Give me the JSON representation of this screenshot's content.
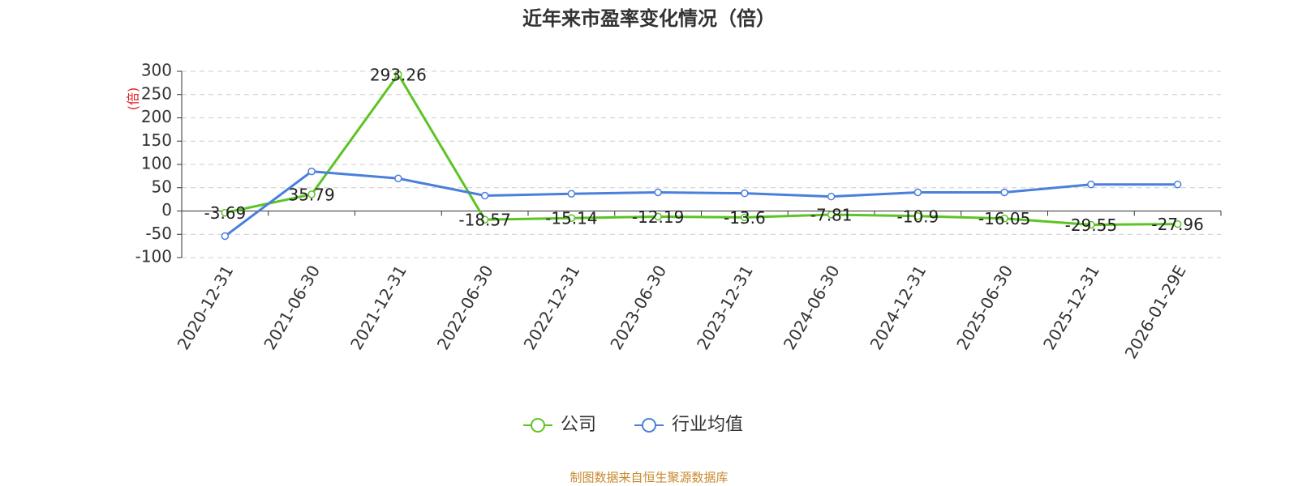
{
  "chart_data": {
    "type": "line",
    "title": "近年来市盈率变化情况（倍）",
    "y_label": "(倍)",
    "source": "制图数据来自恒生聚源数据库",
    "categories": [
      "2020-12-31",
      "2021-06-30",
      "2021-12-31",
      "2022-06-30",
      "2022-12-31",
      "2023-06-30",
      "2023-12-31",
      "2024-06-30",
      "2024-12-31",
      "2025-06-30",
      "2025-12-31",
      "2026-01-29E"
    ],
    "series": [
      {
        "name": "公司",
        "color": "#5cc424",
        "values": [
          -3.69,
          35.79,
          293.26,
          -18.57,
          -15.14,
          -12.19,
          -13.6,
          -7.81,
          -10.9,
          -16.05,
          -29.55,
          -27.96
        ],
        "show_labels": true
      },
      {
        "name": "行业均值",
        "color": "#4a7fdc",
        "values": [
          -54,
          85,
          70,
          33,
          37,
          40,
          38,
          31,
          40,
          40,
          57,
          57
        ],
        "show_labels": false
      }
    ],
    "ylim": [
      -100,
      300
    ],
    "yticks": [
      -100,
      -50,
      0,
      50,
      100,
      150,
      200,
      250,
      300
    ],
    "grid": true,
    "legend": "bottom"
  }
}
